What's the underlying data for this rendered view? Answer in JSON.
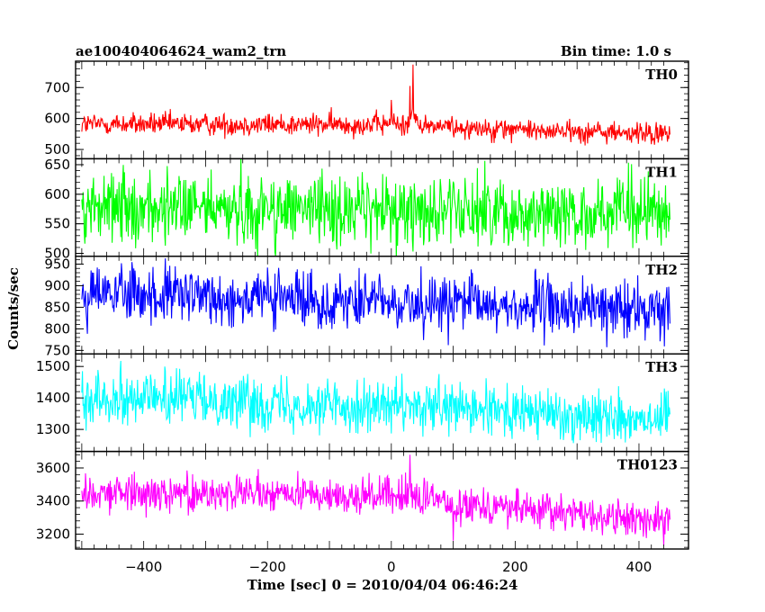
{
  "header": {
    "title": "ae100404064624_wam2_trn",
    "bin_time": "Bin time: 1.0 s"
  },
  "chart_data": {
    "type": "line",
    "xlabel": "Time [sec] 0 = 2010/04/04 06:46:24",
    "ylabel": "Counts/sec",
    "xlim": [
      -510,
      480
    ],
    "x_range": [
      -500,
      450
    ],
    "x_step": 1.0,
    "xticks": [
      -400,
      -200,
      0,
      200,
      400
    ],
    "grid": false,
    "panels": [
      {
        "name": "TH0",
        "color": "#ff0000",
        "ylim": [
          470,
          785
        ],
        "yticks": [
          500,
          600,
          700
        ],
        "baseline": [
          [
            -500,
            582
          ],
          [
            0,
            580
          ],
          [
            450,
            548
          ]
        ],
        "noise": 18,
        "features": [
          {
            "x": 0,
            "value": 660
          },
          {
            "x": 35,
            "value": 785
          },
          {
            "x": 30,
            "value": 705
          }
        ]
      },
      {
        "name": "TH1",
        "color": "#00ff00",
        "ylim": [
          495,
          660
        ],
        "yticks": [
          500,
          550,
          600,
          650
        ],
        "baseline": [
          [
            -500,
            578
          ],
          [
            450,
            568
          ]
        ],
        "noise": 30,
        "features": []
      },
      {
        "name": "TH2",
        "color": "#0000ff",
        "ylim": [
          742,
          968
        ],
        "yticks": [
          750,
          800,
          850,
          900,
          950
        ],
        "baseline": [
          [
            -500,
            882
          ],
          [
            450,
            842
          ]
        ],
        "noise": 33,
        "features": []
      },
      {
        "name": "TH3",
        "color": "#00ffff",
        "ylim": [
          1230,
          1540
        ],
        "yticks": [
          1300,
          1400,
          1500
        ],
        "baseline": [
          [
            -500,
            1410
          ],
          [
            450,
            1335
          ]
        ],
        "noise": 42,
        "features": []
      },
      {
        "name": "TH0123",
        "color": "#ff00ff",
        "ylim": [
          3110,
          3700
        ],
        "yticks": [
          3200,
          3400,
          3600
        ],
        "baseline": [
          [
            -500,
            3460
          ],
          [
            0,
            3430
          ],
          [
            450,
            3270
          ]
        ],
        "noise": 55,
        "features": [
          {
            "x": 30,
            "value": 3680
          },
          {
            "x": 100,
            "value": 3160
          }
        ]
      }
    ]
  }
}
